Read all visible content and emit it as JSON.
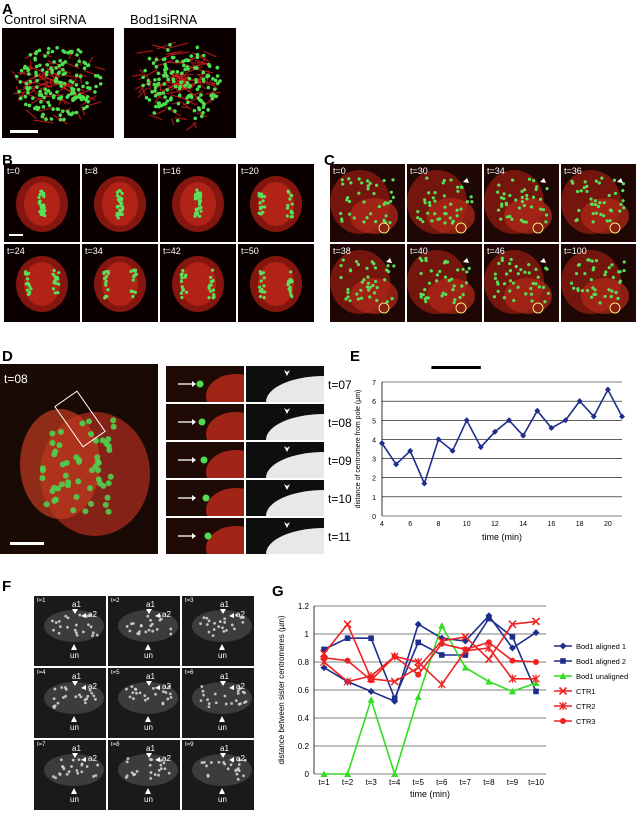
{
  "panelA": {
    "label": "A",
    "left_title": "Control siRNA",
    "right_title": "Bod1siRNA"
  },
  "panelB": {
    "label": "B",
    "frames": [
      "t=0",
      "t=8",
      "t=16",
      "t=20",
      "t=24",
      "t=34",
      "t=42",
      "t=50"
    ]
  },
  "panelC": {
    "label": "C",
    "frames": [
      "t=0",
      "t=30",
      "t=34",
      "t=36",
      "t=38",
      "t=40",
      "t=46",
      "t=100"
    ]
  },
  "panelD": {
    "label": "D",
    "main_time": "t=08",
    "strip_times": [
      "t=07",
      "t=08",
      "t=09",
      "t=10",
      "t=11"
    ]
  },
  "panelF": {
    "label": "F",
    "frames": [
      "t=1",
      "t=2",
      "t=3",
      "t=4",
      "t=5",
      "t=6",
      "t=7",
      "t=8",
      "t=9"
    ],
    "markers": {
      "a1": "a1",
      "a2": "a2",
      "un": "un"
    }
  },
  "colors": {
    "bod1_aligned_1": "#1f2e8c",
    "bod1_aligned_2": "#1f2e8c",
    "bod1_unaligned": "#33dd22",
    "ctr": "#ee2222",
    "panelE_line": "#1f2e8c"
  },
  "chart_data": [
    {
      "panel": "E",
      "label": "E",
      "type": "line",
      "xlabel": "time (min)",
      "ylabel": "distance of centromere from pole (µm)",
      "xlim": [
        4,
        21
      ],
      "ylim": [
        0,
        7
      ],
      "xticks": [
        4,
        6,
        8,
        10,
        12,
        14,
        16,
        18,
        20
      ],
      "yticks": [
        0,
        1,
        2,
        3,
        4,
        5,
        6,
        7
      ],
      "grid": true,
      "bar_annotation": [
        7.5,
        11
      ],
      "series": [
        {
          "x": [
            4,
            5,
            6,
            7,
            8,
            9,
            10,
            11,
            12,
            13,
            14,
            15,
            16,
            17,
            18,
            19,
            20,
            21
          ],
          "values": [
            3.8,
            2.7,
            3.4,
            1.7,
            4.0,
            3.4,
            5.0,
            3.6,
            4.4,
            5.0,
            4.2,
            5.5,
            4.6,
            5.0,
            6.0,
            5.2,
            6.6,
            5.2
          ]
        }
      ]
    },
    {
      "panel": "G",
      "label": "G",
      "type": "line",
      "xlabel": "time (min)",
      "ylabel": "distance between sister centromeres (µm)",
      "categories": [
        "t=1",
        "t=2",
        "t=3",
        "t=4",
        "t=5",
        "t=6",
        "t=7",
        "t=8",
        "t=9",
        "t=10"
      ],
      "ylim": [
        0,
        1.2
      ],
      "yticks": [
        "0",
        "0.2",
        "0.4",
        "0.6",
        "0.8",
        "1",
        "1.2"
      ],
      "grid": true,
      "legend_position": "right",
      "series": [
        {
          "name": "Bod1 aligned 1",
          "marker": "diamond",
          "values": [
            0.76,
            0.66,
            0.59,
            0.52,
            1.07,
            0.97,
            0.95,
            1.13,
            0.9,
            1.01
          ]
        },
        {
          "name": "Bod1 aligned 2",
          "marker": "square",
          "values": [
            0.89,
            0.97,
            0.97,
            0.54,
            0.94,
            0.85,
            0.85,
            1.11,
            0.98,
            0.59
          ]
        },
        {
          "name": "Bod1 unaligned",
          "marker": "triangle",
          "values": [
            0.0,
            0.0,
            0.53,
            0.0,
            0.55,
            1.06,
            0.76,
            0.66,
            0.59,
            0.65
          ]
        },
        {
          "name": "CTR1",
          "marker": "x",
          "values": [
            0.86,
            1.07,
            0.68,
            0.66,
            0.76,
            0.95,
            0.98,
            0.82,
            1.07,
            1.09
          ]
        },
        {
          "name": "CTR2",
          "marker": "star",
          "values": [
            0.8,
            0.66,
            0.7,
            0.84,
            0.8,
            0.64,
            0.88,
            0.9,
            0.68,
            0.68
          ]
        },
        {
          "name": "CTR3",
          "marker": "circle",
          "values": [
            0.83,
            0.81,
            0.67,
            0.84,
            0.71,
            0.93,
            0.89,
            0.94,
            0.81,
            0.8
          ]
        }
      ]
    }
  ]
}
